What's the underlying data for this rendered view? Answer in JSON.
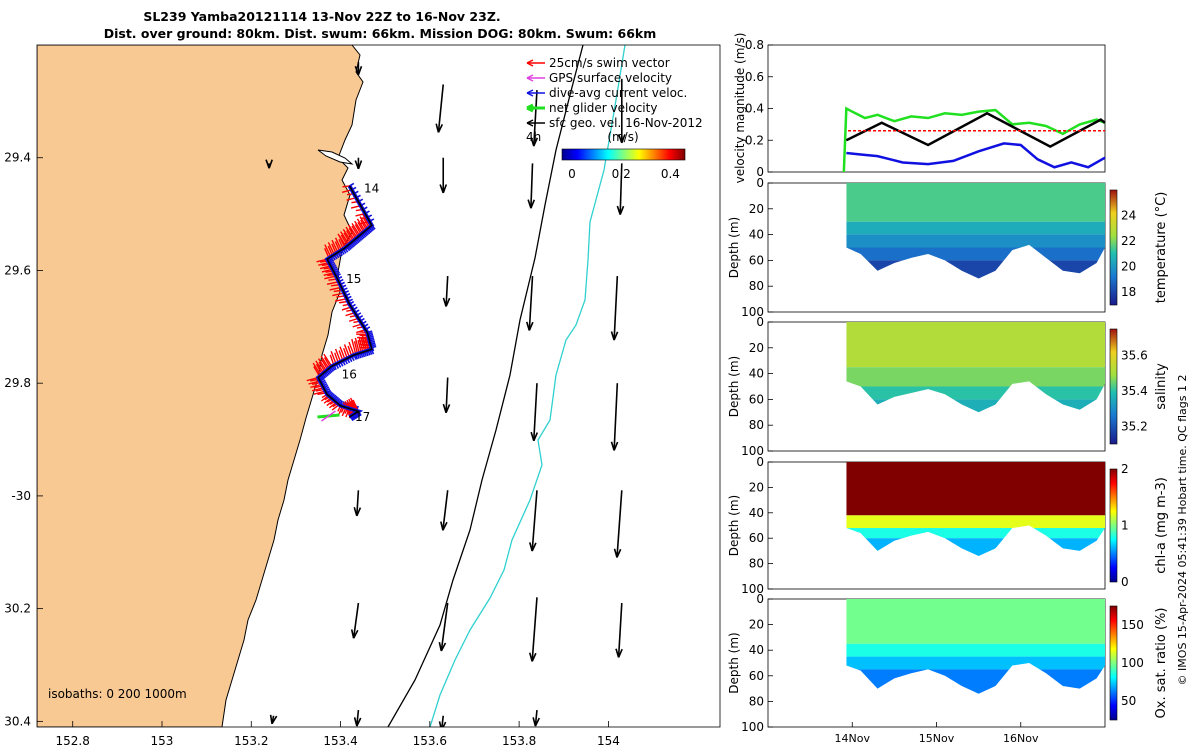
{
  "title_line1": "SL239 Yamba20121114 13-Nov 22Z to 16-Nov 23Z.",
  "title_line2": "Dist. over ground: 80km. Dist. swum: 66km. Mission DOG: 80km. Swum: 66km",
  "credit": "© IMOS 15-Apr-2024 05:41:39 Hobart time. QC flags 1  2",
  "isobaths_label": "isobaths: 0   200  1000m",
  "colors": {
    "land": "#f9c994",
    "swim": "#ff0000",
    "gps": "#e040e0",
    "current": "#1010e0",
    "net": "#20e020",
    "geo": "#000000",
    "isobath_200": "#000000",
    "isobath_1000": "#30d0d0"
  },
  "chart_data": [
    {
      "type": "scatter",
      "name": "map",
      "xlim": [
        152.72,
        154.25
      ],
      "ylim": [
        -30.41,
        -29.2
      ],
      "xticks": [
        152.8,
        153,
        153.2,
        153.4,
        153.6,
        153.8,
        154
      ],
      "xtick_labels": [
        "152.8",
        "153",
        "153.2",
        "153.4",
        "153.6",
        "153.8",
        "154"
      ],
      "yticks": [
        -29.4,
        -29.6,
        -29.8,
        -30.0,
        -30.2,
        -30.4
      ],
      "ytick_labels": [
        "29.4",
        "29.6",
        "29.8",
        "-30",
        "30.2",
        "30.4"
      ],
      "legend": {
        "placement": "top-right",
        "entries": [
          {
            "label": "25cm/s swim vector",
            "color": "#ff0000"
          },
          {
            "label": "GPS surface velocity",
            "color": "#e040e0"
          },
          {
            "label": "dive-avg current veloc.",
            "color": "#1010e0"
          },
          {
            "label": "net glider velocity",
            "color": "#20e020"
          },
          {
            "label": "sfc geo. vel. 16-Nov-2012",
            "color": "#000000"
          }
        ],
        "scale_label": "4h"
      },
      "colorbar": {
        "label": "(m/s)",
        "ticks": [
          0,
          0.2,
          0.4
        ],
        "tick_labels": [
          "0",
          "0.2",
          "0.4"
        ],
        "range": [
          0,
          0.5
        ]
      },
      "track": [
        [
          153.42,
          -29.45
        ],
        [
          153.47,
          -29.52
        ],
        [
          153.44,
          -29.54
        ],
        [
          153.41,
          -29.56
        ],
        [
          153.37,
          -29.58
        ],
        [
          153.39,
          -29.61
        ],
        [
          153.42,
          -29.66
        ],
        [
          153.46,
          -29.71
        ],
        [
          153.47,
          -29.74
        ],
        [
          153.43,
          -29.75
        ],
        [
          153.38,
          -29.77
        ],
        [
          153.35,
          -29.79
        ],
        [
          153.37,
          -29.82
        ],
        [
          153.4,
          -29.84
        ],
        [
          153.44,
          -29.85
        ],
        [
          153.42,
          -29.86
        ]
      ],
      "day_labels": [
        {
          "text": "14",
          "lon": 153.43,
          "lat": -29.455
        },
        {
          "text": "15",
          "lon": 153.39,
          "lat": -29.615
        },
        {
          "text": "16",
          "lon": 153.38,
          "lat": -29.785
        },
        {
          "text": "17",
          "lon": 153.41,
          "lat": -29.86
        }
      ],
      "geo_vectors": [
        {
          "lon": 153.44,
          "lat": -29.23,
          "u": 0.0,
          "v": -0.08
        },
        {
          "lon": 153.63,
          "lat": -29.27,
          "u": -0.03,
          "v": -0.3
        },
        {
          "lon": 153.84,
          "lat": -29.28,
          "u": -0.02,
          "v": -0.35
        },
        {
          "lon": 154.03,
          "lat": -29.26,
          "u": 0.0,
          "v": -0.4
        },
        {
          "lon": 153.24,
          "lat": -29.41,
          "u": 0.0,
          "v": -0.03
        },
        {
          "lon": 153.44,
          "lat": -29.4,
          "u": 0.0,
          "v": -0.07
        },
        {
          "lon": 153.63,
          "lat": -29.4,
          "u": 0.0,
          "v": -0.22
        },
        {
          "lon": 153.83,
          "lat": -29.41,
          "u": -0.01,
          "v": -0.28
        },
        {
          "lon": 154.03,
          "lat": -29.41,
          "u": -0.01,
          "v": -0.32
        },
        {
          "lon": 153.64,
          "lat": -29.61,
          "u": -0.01,
          "v": -0.19
        },
        {
          "lon": 153.83,
          "lat": -29.61,
          "u": -0.02,
          "v": -0.34
        },
        {
          "lon": 154.02,
          "lat": -29.61,
          "u": -0.02,
          "v": -0.4
        },
        {
          "lon": 153.64,
          "lat": -29.79,
          "u": -0.01,
          "v": -0.22
        },
        {
          "lon": 153.84,
          "lat": -29.8,
          "u": -0.02,
          "v": -0.36
        },
        {
          "lon": 154.02,
          "lat": -29.8,
          "u": -0.02,
          "v": -0.42
        },
        {
          "lon": 153.44,
          "lat": -29.99,
          "u": -0.01,
          "v": -0.16
        },
        {
          "lon": 153.64,
          "lat": -29.99,
          "u": -0.03,
          "v": -0.25
        },
        {
          "lon": 153.84,
          "lat": -29.99,
          "u": -0.03,
          "v": -0.38
        },
        {
          "lon": 154.03,
          "lat": -29.99,
          "u": -0.03,
          "v": -0.42
        },
        {
          "lon": 153.44,
          "lat": -30.19,
          "u": -0.03,
          "v": -0.22
        },
        {
          "lon": 153.64,
          "lat": -30.19,
          "u": -0.04,
          "v": -0.3
        },
        {
          "lon": 153.84,
          "lat": -30.18,
          "u": -0.03,
          "v": -0.4
        },
        {
          "lon": 154.03,
          "lat": -30.19,
          "u": -0.02,
          "v": -0.34
        },
        {
          "lon": 153.25,
          "lat": -30.39,
          "u": -0.01,
          "v": -0.05
        },
        {
          "lon": 153.44,
          "lat": -30.38,
          "u": -0.01,
          "v": -0.1
        },
        {
          "lon": 153.63,
          "lat": -30.39,
          "u": -0.01,
          "v": -0.09
        },
        {
          "lon": 153.84,
          "lat": -30.38,
          "u": -0.01,
          "v": -0.1
        }
      ]
    },
    {
      "type": "line",
      "name": "velocity",
      "ylabel": "velocity magnitude (m/s)",
      "ylim": [
        0,
        0.8
      ],
      "yticks": [
        0,
        0.2,
        0.4,
        0.6,
        0.8
      ],
      "series": [
        {
          "color": "#20e020",
          "x": [
            3.9,
            3.93,
            4.0,
            4.15,
            4.3,
            4.5,
            4.7,
            4.9,
            5.1,
            5.3,
            5.5,
            5.7,
            5.9,
            6.1,
            6.3,
            6.5,
            6.7,
            6.9,
            7.0
          ],
          "values": [
            0.0,
            0.4,
            0.38,
            0.34,
            0.36,
            0.32,
            0.35,
            0.34,
            0.37,
            0.36,
            0.38,
            0.39,
            0.3,
            0.31,
            0.29,
            0.24,
            0.3,
            0.33,
            0.31
          ]
        },
        {
          "color": "#000000",
          "x": [
            3.93,
            4.35,
            4.9,
            5.6,
            6.35,
            6.95,
            7.0
          ],
          "values": [
            0.2,
            0.31,
            0.17,
            0.37,
            0.16,
            0.33,
            0.31
          ]
        },
        {
          "color": "#1010e0",
          "x": [
            3.93,
            4.1,
            4.3,
            4.6,
            4.9,
            5.2,
            5.5,
            5.8,
            6.0,
            6.2,
            6.4,
            6.6,
            6.8,
            7.0
          ],
          "values": [
            0.12,
            0.11,
            0.1,
            0.06,
            0.05,
            0.07,
            0.13,
            0.18,
            0.17,
            0.08,
            0.03,
            0.06,
            0.03,
            0.09
          ]
        },
        {
          "color": "#ff0000",
          "x": [
            3.95,
            7.0
          ],
          "values": [
            0.26,
            0.26
          ]
        }
      ]
    },
    {
      "type": "heatmap",
      "name": "temperature",
      "ylabel": "Depth (m)",
      "clabel": "temperature (°C)",
      "ylim": [
        100,
        0
      ],
      "yticks": [
        0,
        20,
        40,
        60,
        80,
        100
      ],
      "crange": [
        17,
        26
      ],
      "cticks": [
        18,
        20,
        22,
        24
      ],
      "x": [
        3.93,
        4.1,
        4.3,
        4.5,
        4.7,
        4.9,
        5.1,
        5.3,
        5.5,
        5.7,
        5.9,
        6.1,
        6.3,
        6.5,
        6.7,
        6.9,
        7.0
      ],
      "bottom_depth": [
        50,
        55,
        68,
        62,
        58,
        55,
        60,
        68,
        74,
        68,
        52,
        48,
        58,
        68,
        70,
        62,
        50
      ],
      "layers": [
        [
          0,
          30,
          21.5
        ],
        [
          30,
          40,
          20.5
        ],
        [
          40,
          50,
          19.8
        ],
        [
          50,
          60,
          19.0
        ],
        [
          60,
          80,
          18.0
        ]
      ]
    },
    {
      "type": "heatmap",
      "name": "salinity",
      "ylabel": "Depth (m)",
      "clabel": "salinity",
      "ylim": [
        100,
        0
      ],
      "yticks": [
        0,
        20,
        40,
        60,
        80,
        100
      ],
      "crange": [
        35.1,
        35.75
      ],
      "cticks": [
        35.2,
        35.4,
        35.6
      ],
      "x": [
        3.93,
        4.1,
        4.3,
        4.5,
        4.7,
        4.9,
        5.1,
        5.3,
        5.5,
        5.7,
        5.9,
        6.1,
        6.3,
        6.5,
        6.7,
        6.9,
        7.0
      ],
      "bottom_depth": [
        46,
        50,
        64,
        58,
        55,
        52,
        56,
        64,
        70,
        64,
        48,
        46,
        56,
        64,
        68,
        60,
        48
      ],
      "layers": [
        [
          0,
          35,
          35.52
        ],
        [
          35,
          50,
          35.46
        ],
        [
          50,
          60,
          35.4
        ],
        [
          60,
          80,
          35.36
        ]
      ]
    },
    {
      "type": "heatmap",
      "name": "chl-a",
      "ylabel": "Depth (m)",
      "clabel": "chl-a (mg m-3)",
      "ylim": [
        100,
        0
      ],
      "yticks": [
        0,
        20,
        40,
        60,
        80,
        100
      ],
      "crange": [
        0,
        2
      ],
      "cticks": [
        0,
        1,
        2
      ],
      "x": [
        3.93,
        4.1,
        4.3,
        4.5,
        4.7,
        4.9,
        5.1,
        5.3,
        5.5,
        5.7,
        5.9,
        6.1,
        6.3,
        6.5,
        6.7,
        6.9,
        7.0
      ],
      "bottom_depth": [
        52,
        56,
        70,
        62,
        58,
        55,
        60,
        68,
        74,
        68,
        52,
        50,
        58,
        68,
        70,
        62,
        52
      ],
      "layers": [
        [
          0,
          42,
          2.0
        ],
        [
          42,
          52,
          1.2
        ],
        [
          52,
          60,
          0.8
        ],
        [
          60,
          80,
          0.6
        ]
      ]
    },
    {
      "type": "heatmap",
      "name": "oxygen",
      "ylabel": "Depth (m)",
      "clabel": "Ox. sat. ratio (%)",
      "ylim": [
        100,
        0
      ],
      "yticks": [
        0,
        20,
        40,
        60,
        80,
        100
      ],
      "crange": [
        25,
        175
      ],
      "cticks": [
        50,
        100,
        150
      ],
      "x_ticks": [
        4,
        5,
        6
      ],
      "x_tick_labels": [
        "14Nov",
        "15Nov",
        "16Nov"
      ],
      "x": [
        3.93,
        4.1,
        4.3,
        4.5,
        4.7,
        4.9,
        5.1,
        5.3,
        5.5,
        5.7,
        5.9,
        6.1,
        6.3,
        6.5,
        6.7,
        6.9,
        7.0
      ],
      "bottom_depth": [
        52,
        56,
        70,
        62,
        58,
        55,
        60,
        68,
        74,
        68,
        52,
        50,
        58,
        68,
        70,
        62,
        52
      ],
      "layers": [
        [
          0,
          35,
          98
        ],
        [
          35,
          45,
          85
        ],
        [
          45,
          55,
          72
        ],
        [
          55,
          80,
          62
        ]
      ]
    }
  ]
}
